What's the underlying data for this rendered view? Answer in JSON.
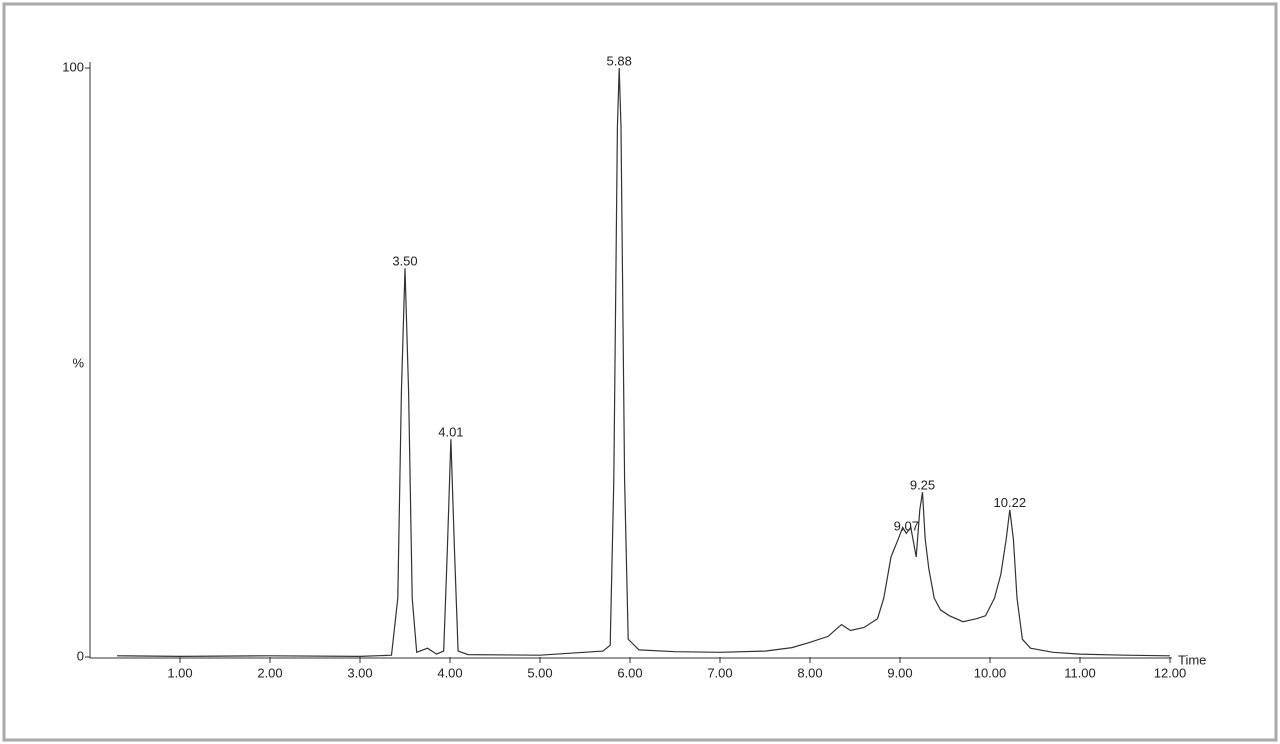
{
  "chart_data": {
    "type": "line",
    "x_label": "Time",
    "y_label": "%",
    "color": "#333333",
    "x": [
      0.3,
      1.0,
      2.0,
      3.0,
      3.35,
      3.42,
      3.46,
      3.5,
      3.54,
      3.58,
      3.63,
      3.75,
      3.85,
      3.93,
      3.97,
      4.01,
      4.05,
      4.09,
      4.2,
      5.0,
      5.7,
      5.78,
      5.82,
      5.86,
      5.88,
      5.9,
      5.94,
      5.98,
      6.1,
      6.5,
      7.0,
      7.5,
      7.8,
      8.0,
      8.2,
      8.35,
      8.45,
      8.6,
      8.75,
      8.82,
      8.9,
      8.98,
      9.03,
      9.07,
      9.12,
      9.18,
      9.22,
      9.25,
      9.28,
      9.32,
      9.38,
      9.45,
      9.55,
      9.7,
      9.85,
      9.95,
      10.05,
      10.12,
      10.18,
      10.22,
      10.26,
      10.3,
      10.36,
      10.45,
      10.7,
      11.0,
      11.5,
      12.0
    ],
    "values": [
      0.2,
      0.1,
      0.2,
      0.1,
      0.3,
      10,
      45,
      66,
      45,
      10,
      0.8,
      1.5,
      0.5,
      1,
      18,
      37,
      18,
      1,
      0.4,
      0.3,
      1,
      2,
      30,
      90,
      100,
      90,
      30,
      3,
      1.2,
      0.9,
      0.8,
      1,
      1.6,
      2.5,
      3.5,
      5.5,
      4.5,
      5,
      6.5,
      10,
      17,
      20,
      22,
      21,
      22,
      17,
      25,
      28,
      20,
      15,
      10,
      8,
      7,
      6,
      6.5,
      7,
      10,
      14,
      20,
      25,
      20,
      10,
      3,
      1.5,
      0.8,
      0.5,
      0.3,
      0.2
    ],
    "annotations": [
      {
        "text": "3.50",
        "x": 3.5,
        "y": 66
      },
      {
        "text": "4.01",
        "x": 4.01,
        "y": 37
      },
      {
        "text": "5.88",
        "x": 5.88,
        "y": 100
      },
      {
        "text": "9.07",
        "x": 9.07,
        "y": 21
      },
      {
        "text": "9.25",
        "x": 9.25,
        "y": 28
      },
      {
        "text": "10.22",
        "x": 10.22,
        "y": 25
      }
    ],
    "xlim": [
      0,
      12
    ],
    "ylim": [
      0,
      100
    ],
    "xticks": [
      {
        "value": 1,
        "label": "1.00"
      },
      {
        "value": 2,
        "label": "2.00"
      },
      {
        "value": 3,
        "label": "3.00"
      },
      {
        "value": 4,
        "label": "4.00"
      },
      {
        "value": 5,
        "label": "5.00"
      },
      {
        "value": 6,
        "label": "6.00"
      },
      {
        "value": 7,
        "label": "7.00"
      },
      {
        "value": 8,
        "label": "8.00"
      },
      {
        "value": 9,
        "label": "9.00"
      },
      {
        "value": 10,
        "label": "10.00"
      },
      {
        "value": 11,
        "label": "11.00"
      },
      {
        "value": 12,
        "label": "12.00"
      }
    ],
    "yticks": [
      0,
      100
    ]
  }
}
